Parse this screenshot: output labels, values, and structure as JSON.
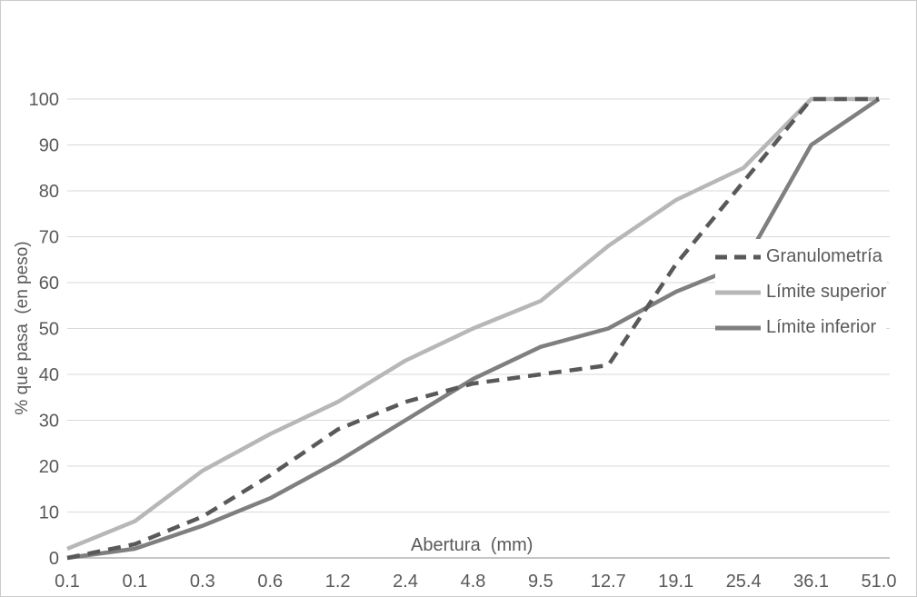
{
  "chart": {
    "x_axis_title": "Abertura  (mm)",
    "y_axis_title": "% que pasa  (en peso)",
    "colors": {
      "grid": "#d9d9d9",
      "axis": "#b3b3b3",
      "label_text": "#595959",
      "border": "#cbcbcb"
    }
  },
  "chart_data": {
    "type": "line",
    "title": "",
    "xlabel": "Abertura (mm)",
    "ylabel": "% que pasa (en peso)",
    "categories": [
      "0.1",
      "0.1",
      "0.3",
      "0.6",
      "1.2",
      "2.4",
      "4.8",
      "9.5",
      "12.7",
      "19.1",
      "25.4",
      "36.1",
      "51.0"
    ],
    "series": [
      {
        "name": "Granulometría",
        "style": "dashed",
        "color": "#595959",
        "values": [
          0,
          3,
          9,
          18,
          28,
          34,
          38,
          40,
          42,
          64,
          82,
          100,
          100
        ]
      },
      {
        "name": "Límite superior",
        "style": "solid",
        "color": "#b7b7b7",
        "values": [
          2,
          8,
          19,
          27,
          34,
          43,
          50,
          56,
          68,
          78,
          85,
          100,
          100
        ]
      },
      {
        "name": "Límite inferior",
        "style": "solid",
        "color": "#7f7f7f",
        "values": [
          0,
          2,
          7,
          13,
          21,
          30,
          39,
          46,
          50,
          58,
          64,
          90,
          100
        ]
      }
    ],
    "ylim": [
      0,
      100
    ],
    "y_ticks": [
      0,
      10,
      20,
      30,
      40,
      50,
      60,
      70,
      80,
      90,
      100
    ],
    "grid": true,
    "legend_position": "right-middle"
  }
}
